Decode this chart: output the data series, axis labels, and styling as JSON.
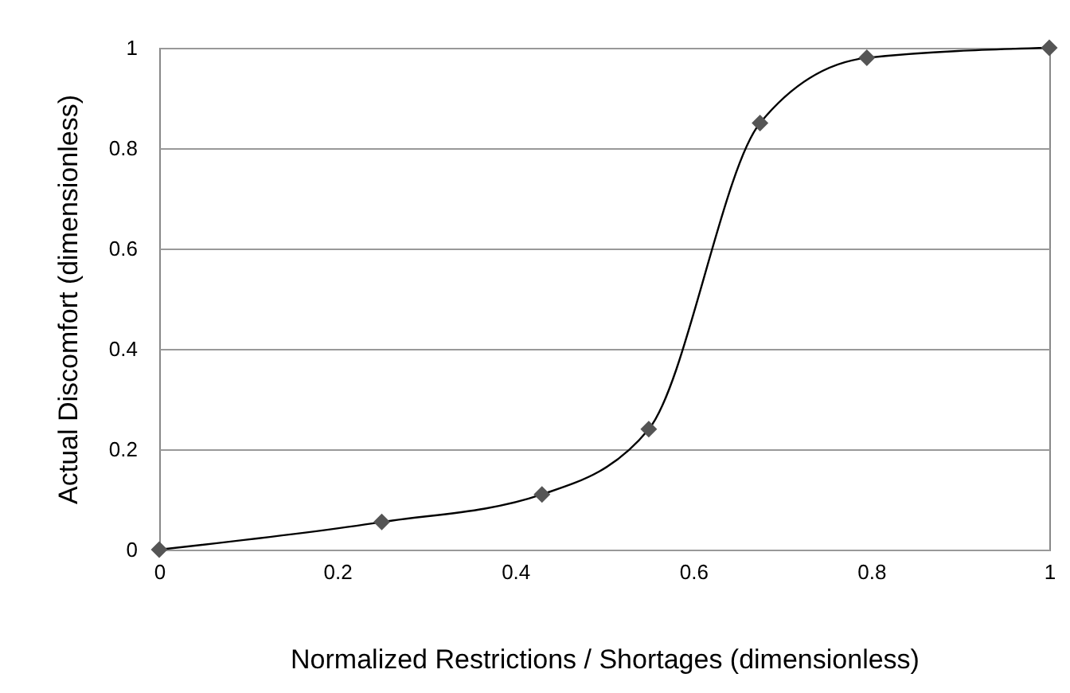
{
  "chart_data": {
    "type": "line",
    "xlabel": "Normalized Restrictions / Shortages (dimensionless)",
    "ylabel": "Actual Discomfort (dimensionless)",
    "x": [
      0,
      0.25,
      0.43,
      0.55,
      0.675,
      0.795,
      1
    ],
    "series": [
      {
        "color": "#555555",
        "values": [
          0,
          0.055,
          0.11,
          0.24,
          0.85,
          0.98,
          1
        ]
      }
    ],
    "xlim": [
      0,
      1
    ],
    "xticks": [
      0,
      0.2,
      0.4,
      0.6,
      0.8,
      1
    ],
    "ylim": [
      0,
      1
    ],
    "yticks": [
      0,
      0.2,
      0.4,
      0.6,
      0.8,
      1
    ],
    "grid": "y",
    "marker": "diamond",
    "line_style": "solid"
  }
}
